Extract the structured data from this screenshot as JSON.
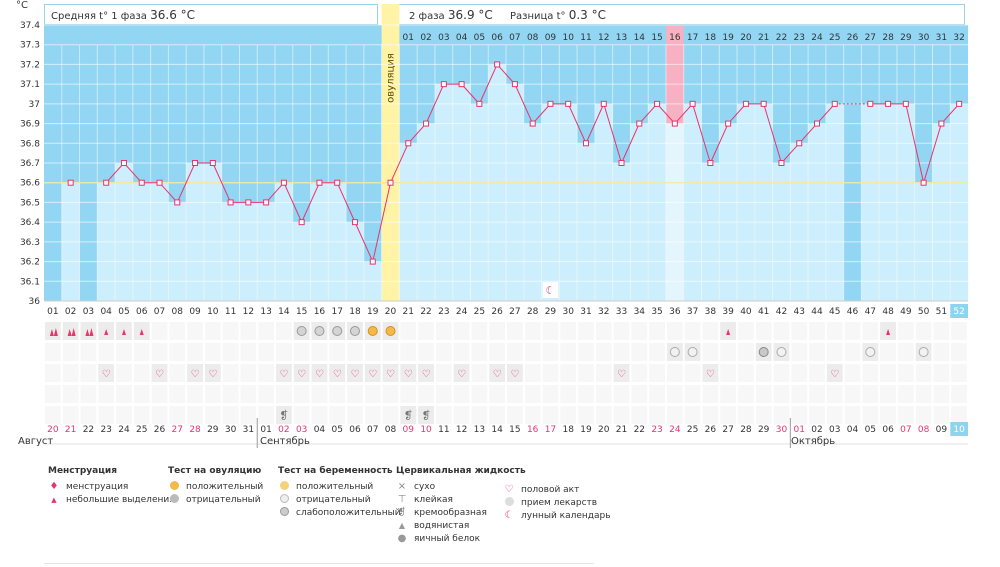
{
  "header": {
    "unit": "°C",
    "phase1_label": "Средняя t° 1 фаза",
    "phase1_value": "36.6 °C",
    "phase2_label": "2 фаза",
    "phase2_value": "36.9 °C",
    "diff_label": "Разница t°",
    "diff_value": "0.3 °C"
  },
  "ovulation_label": "овуляция",
  "months": [
    "Август",
    "Сентябрь",
    "Октябрь"
  ],
  "colors": {
    "accent": "#e8336d",
    "bg_band": "#93d6f3",
    "bar": "#cdeefc",
    "ovulation": "#fff3a6",
    "highlight": "#f7b1c2",
    "coverline": "#f0e8a0"
  },
  "chart_data": {
    "type": "line",
    "ylim": [
      36.0,
      37.4
    ],
    "yticks": [
      "36",
      "36.1",
      "36.2",
      "36.3",
      "36.4",
      "36.5",
      "36.6",
      "36.7",
      "36.8",
      "36.9",
      "37",
      "37.1",
      "37.2",
      "37.3",
      "37.4"
    ],
    "coverline": 36.6,
    "top_day_labels": [
      "",
      "",
      "",
      "",
      "",
      "",
      "",
      "",
      "",
      "",
      "",
      "",
      "",
      "",
      "",
      "",
      "",
      "",
      "",
      "",
      "01",
      "02",
      "03",
      "04",
      "05",
      "06",
      "07",
      "08",
      "09",
      "10",
      "11",
      "12",
      "13",
      "14",
      "15",
      "16",
      "17",
      "18",
      "19",
      "20",
      "21",
      "22",
      "23",
      "24",
      "25",
      "26",
      "27",
      "28",
      "29",
      "30",
      "31",
      "32"
    ],
    "cycle_days": [
      "01",
      "02",
      "03",
      "04",
      "05",
      "06",
      "07",
      "08",
      "09",
      "10",
      "11",
      "12",
      "13",
      "14",
      "15",
      "16",
      "17",
      "18",
      "19",
      "20",
      "21",
      "22",
      "23",
      "24",
      "25",
      "26",
      "27",
      "28",
      "29",
      "30",
      "31",
      "32",
      "33",
      "34",
      "35",
      "36",
      "37",
      "38",
      "39",
      "40",
      "41",
      "42",
      "43",
      "44",
      "45",
      "46",
      "47",
      "48",
      "49",
      "50",
      "51",
      "52"
    ],
    "dates": [
      "20",
      "21",
      "22",
      "23",
      "24",
      "25",
      "26",
      "27",
      "28",
      "29",
      "30",
      "31",
      "01",
      "02",
      "03",
      "04",
      "05",
      "06",
      "07",
      "08",
      "09",
      "10",
      "11",
      "12",
      "13",
      "14",
      "15",
      "16",
      "17",
      "18",
      "19",
      "20",
      "21",
      "22",
      "23",
      "24",
      "25",
      "26",
      "27",
      "28",
      "29",
      "30",
      "01",
      "02",
      "03",
      "04",
      "05",
      "06",
      "07",
      "08",
      "09",
      "10"
    ],
    "weekend_dates": [
      0,
      1,
      7,
      8,
      13,
      14,
      20,
      21,
      27,
      28,
      34,
      35,
      41,
      42,
      48,
      49
    ],
    "temps": [
      null,
      36.6,
      null,
      36.6,
      36.7,
      36.6,
      36.6,
      36.5,
      36.7,
      36.7,
      36.5,
      36.5,
      36.5,
      36.6,
      36.4,
      36.6,
      36.6,
      36.4,
      36.2,
      36.6,
      36.8,
      36.9,
      37.1,
      37.1,
      37.0,
      37.2,
      37.1,
      36.9,
      37.0,
      37.0,
      36.8,
      37.0,
      36.7,
      36.9,
      37.0,
      36.9,
      37.0,
      36.7,
      36.9,
      37.0,
      37.0,
      36.7,
      36.8,
      36.9,
      37.0,
      null,
      37.0,
      37.0,
      37.0,
      36.6,
      36.9,
      37.0
    ],
    "ovulation_index": 19,
    "highlight_index": 35,
    "current_index": 51,
    "rows": {
      "menstruation_heavy": [
        0,
        1,
        2
      ],
      "menstruation_light": [
        3,
        4,
        5,
        38,
        47
      ],
      "ovulation_test_negative": [
        14,
        15,
        16,
        17
      ],
      "ovulation_test_positive": [
        18,
        19
      ],
      "pregnancy_test_negative": [
        35,
        36,
        41,
        46,
        49
      ],
      "pregnancy_test_weak": [
        40
      ],
      "intercourse": [
        3,
        6,
        8,
        9,
        13,
        14,
        15,
        16,
        17,
        18,
        19,
        20,
        21,
        23,
        25,
        26,
        32,
        37,
        44
      ],
      "creamy": [
        13,
        20,
        21
      ],
      "lunar": [
        28
      ]
    }
  },
  "legend": {
    "menstruation": {
      "title": "Менструация",
      "items": [
        "менструация",
        "небольшие выделения"
      ]
    },
    "ovulation_test": {
      "title": "Тест на овуляцию",
      "items": [
        "положительный",
        "отрицательный"
      ]
    },
    "pregnancy_test": {
      "title": "Тест на беременность",
      "items": [
        "положительный",
        "отрицательный",
        "слабоположительный"
      ]
    },
    "cervical": {
      "title": "Цервикальная жидкость",
      "items": [
        "сухо",
        "клейкая",
        "кремообразная",
        "водянистая",
        "яичный белок"
      ]
    },
    "other": {
      "items": [
        "половой акт",
        "прием лекарств",
        "лунный календарь"
      ]
    }
  }
}
